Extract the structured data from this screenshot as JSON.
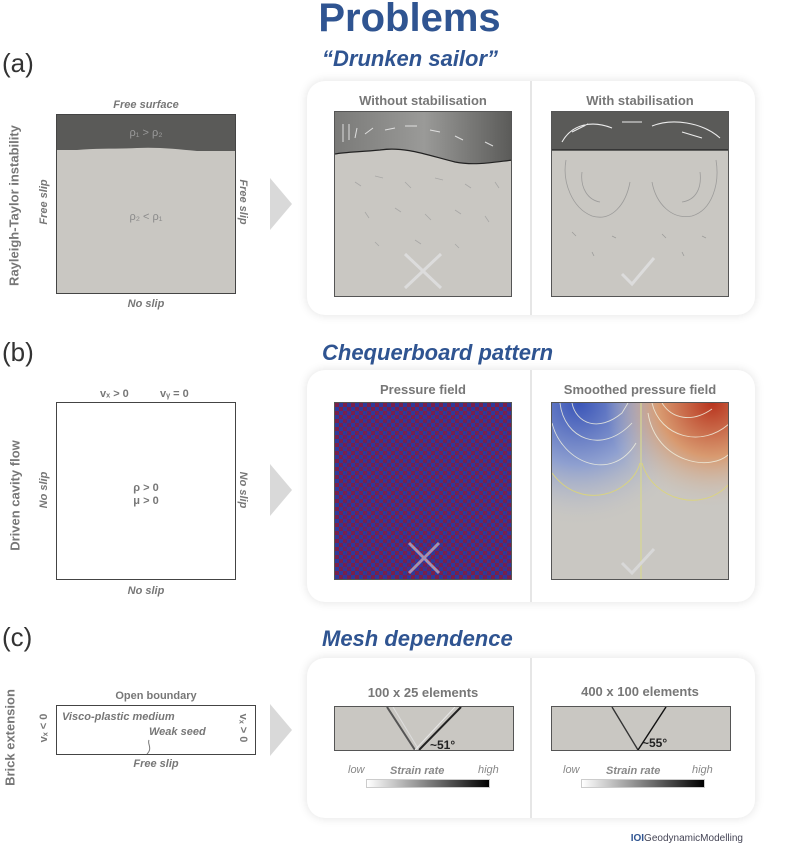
{
  "title": "Problems",
  "sections": [
    {
      "label": "(a)",
      "side_label": "Rayleigh-Taylor instability",
      "title": "“Drunken sailor”",
      "setup": {
        "top": "Free surface",
        "bottom": "No slip",
        "left": "Free slip",
        "right": "Free slip",
        "upper_text": "ρ₁ > ρ₂",
        "lower_text": "ρ₂ < ρ₁"
      },
      "left_panel": "Without stabilisation",
      "right_panel": "With stabilisation"
    },
    {
      "label": "(b)",
      "side_label": "Driven cavity flow",
      "title": "Chequerboard pattern",
      "setup": {
        "top_left": "vₓ > 0",
        "top_right": "vᵧ = 0",
        "bottom": "No slip",
        "left": "No slip",
        "right": "No slip",
        "center_1": "ρ > 0",
        "center_2": "μ > 0"
      },
      "left_panel": "Pressure field",
      "right_panel": "Smoothed pressure field"
    },
    {
      "label": "(c)",
      "side_label": "Brick extension",
      "title": "Mesh dependence",
      "setup": {
        "top": "Open boundary",
        "bottom": "Free slip",
        "left": "vₓ < 0",
        "right": "vₓ > 0",
        "medium": "Visco-plastic medium",
        "seed": "Weak seed"
      },
      "left_panel": "100 x 25 elements",
      "right_panel": "400 x 100 elements",
      "left_angle": "~51°",
      "right_angle": "~55°",
      "colorbar": {
        "low": "low",
        "label": "Strain rate",
        "high": "high"
      }
    }
  ],
  "footer": {
    "brand": "IOI",
    "name": "GeodynamicModelling"
  },
  "colors": {
    "accent": "#2f5491",
    "dense": "#5a5a58",
    "light": "#c9c7c2",
    "checker_a": "#7a1f4a",
    "checker_b": "#2c3a9a"
  }
}
